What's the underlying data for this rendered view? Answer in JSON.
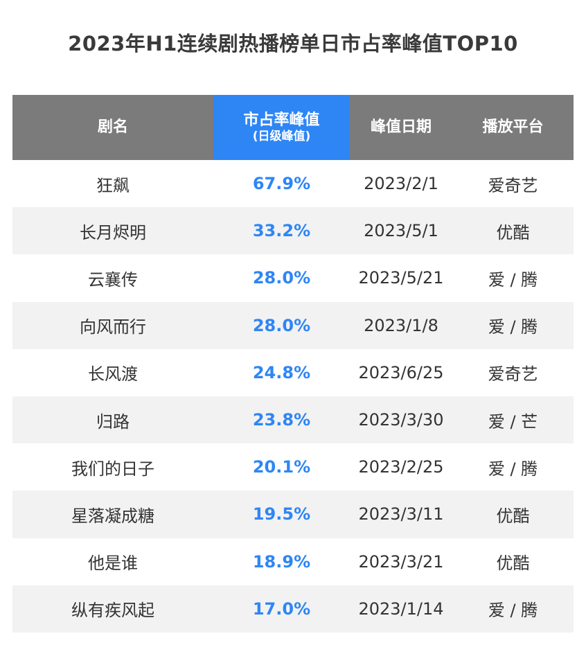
{
  "title": "2023年H1连续剧热播榜单日市占率峰值TOP10",
  "chart_data": {
    "type": "table",
    "columns": [
      {
        "label": "剧名",
        "sub": ""
      },
      {
        "label": "市占率峰值",
        "sub": "(日级峰值)"
      },
      {
        "label": "峰值日期",
        "sub": ""
      },
      {
        "label": "播放平台",
        "sub": ""
      }
    ],
    "rows": [
      {
        "name": "狂飙",
        "share": "67.9%",
        "date": "2023/2/1",
        "platform": "爱奇艺"
      },
      {
        "name": "长月烬明",
        "share": "33.2%",
        "date": "2023/5/1",
        "platform": "优酷"
      },
      {
        "name": "云襄传",
        "share": "28.0%",
        "date": "2023/5/21",
        "platform": "爱 / 腾"
      },
      {
        "name": "向风而行",
        "share": "28.0%",
        "date": "2023/1/8",
        "platform": "爱 / 腾"
      },
      {
        "name": "长风渡",
        "share": "24.8%",
        "date": "2023/6/25",
        "platform": "爱奇艺"
      },
      {
        "name": "归路",
        "share": "23.8%",
        "date": "2023/3/30",
        "platform": "爱 / 芒"
      },
      {
        "name": "我们的日子",
        "share": "20.1%",
        "date": "2023/2/25",
        "platform": "爱 / 腾"
      },
      {
        "name": "星落凝成糖",
        "share": "19.5%",
        "date": "2023/3/11",
        "platform": "优酷"
      },
      {
        "name": "他是谁",
        "share": "18.9%",
        "date": "2023/3/21",
        "platform": "优酷"
      },
      {
        "name": "纵有疾风起",
        "share": "17.0%",
        "date": "2023/1/14",
        "platform": "爱 / 腾"
      }
    ]
  },
  "colors": {
    "header_bg": "#7b7b7b",
    "highlight_bg": "#2e86f5",
    "share_text": "#2e86f5",
    "alt_row_bg": "#f2f2f2"
  }
}
